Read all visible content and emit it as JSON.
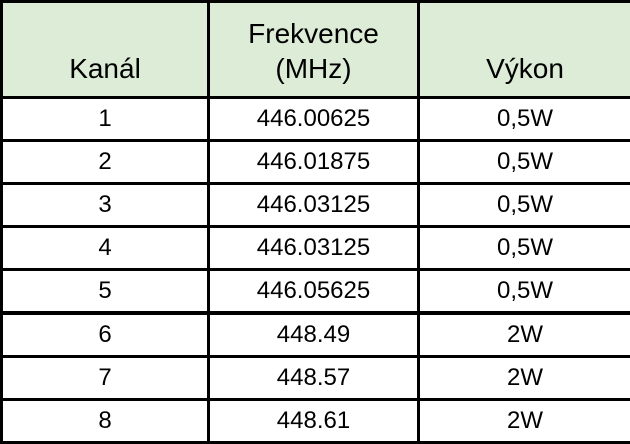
{
  "table": {
    "headers": {
      "channel": "Kanál",
      "frequency_line1": "Frekvence",
      "frequency_line2": "(MHz)",
      "power": "Výkon"
    },
    "rows": [
      {
        "channel": "1",
        "frequency": "446.00625",
        "power": "0,5W"
      },
      {
        "channel": "2",
        "frequency": "446.01875",
        "power": "0,5W"
      },
      {
        "channel": "3",
        "frequency": "446.03125",
        "power": "0,5W"
      },
      {
        "channel": "4",
        "frequency": "446.03125",
        "power": "0,5W"
      },
      {
        "channel": "5",
        "frequency": "446.05625",
        "power": "0,5W"
      },
      {
        "channel": "6",
        "frequency": "448.49",
        "power": "2W"
      },
      {
        "channel": "7",
        "frequency": "448.57",
        "power": "2W"
      },
      {
        "channel": "8",
        "frequency": "448.61",
        "power": "2W"
      }
    ],
    "colors": {
      "header_background": "#dcecd6",
      "border": "#000000",
      "row_background": "#ffffff",
      "text": "#000000"
    }
  }
}
